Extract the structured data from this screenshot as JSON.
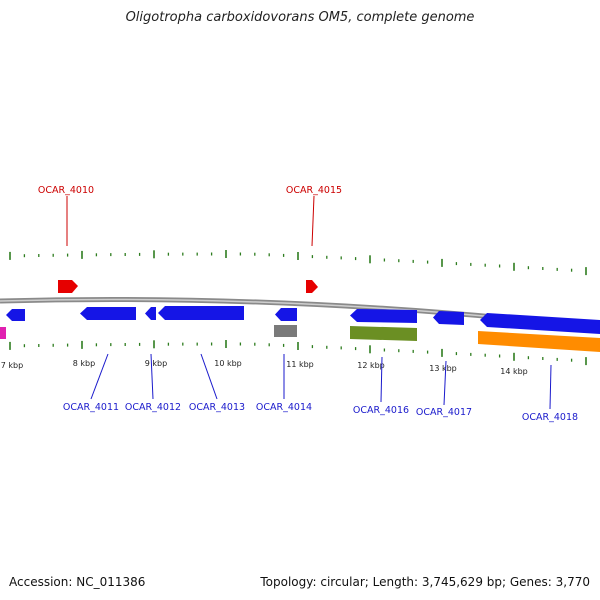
{
  "title": "Oligotropha carboxidovorans OM5, complete genome",
  "colors": {
    "backbone": "#8a8a8a",
    "tick": "#2e7d1f",
    "label_red": "#cc0000",
    "label_blue": "#1a1acc",
    "gene_blue": "#1515e6",
    "gene_red": "#e60000",
    "gene_gray": "#7a7a7a",
    "gene_olive": "#6b8f23",
    "gene_orange": "#ff8c00",
    "gene_magenta": "#e020b0"
  },
  "scale_labels": [
    "7 kbp",
    "8 kbp",
    "9 kbp",
    "10 kbp",
    "11 kbp",
    "12 kbp",
    "13 kbp",
    "14 kbp"
  ],
  "genes_top": [
    {
      "label": "OCAR_4010",
      "color": "red"
    },
    {
      "label": "OCAR_4015",
      "color": "red"
    }
  ],
  "genes_bottom": [
    {
      "label": "OCAR_4011",
      "color": "blue"
    },
    {
      "label": "OCAR_4012",
      "color": "blue"
    },
    {
      "label": "OCAR_4013",
      "color": "blue"
    },
    {
      "label": "OCAR_4014",
      "color": "blue"
    },
    {
      "label": "OCAR_4016",
      "color": "blue"
    },
    {
      "label": "OCAR_4017",
      "color": "blue"
    },
    {
      "label": "OCAR_4018",
      "color": "blue"
    }
  ],
  "footer": {
    "accession": "Accession: NC_011386",
    "topology": "Topology: circular; Length: 3,745,629 bp; Genes: 3,770"
  }
}
